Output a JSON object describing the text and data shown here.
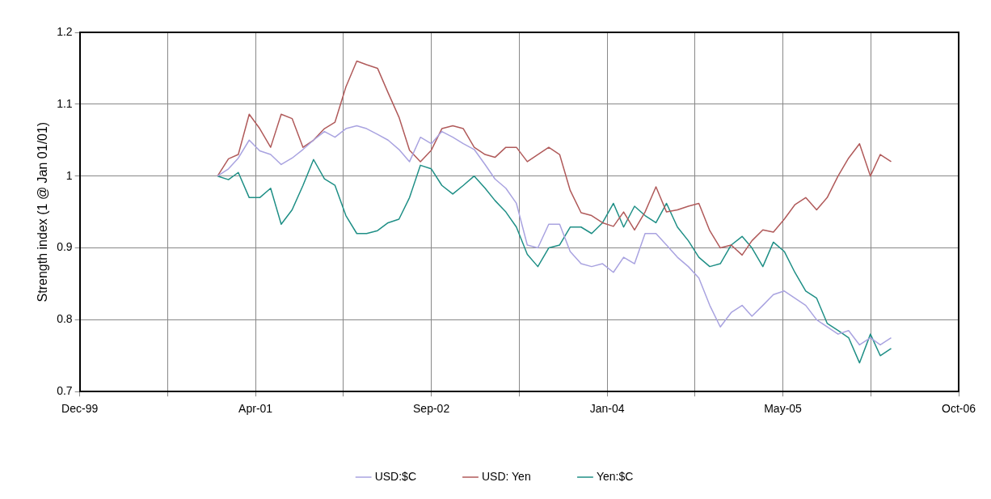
{
  "chart_data": {
    "type": "line",
    "ylabel": "Strength index (1 @ Jan 01/01)",
    "x": [
      "2001-01",
      "2001-02",
      "2001-03",
      "2001-04",
      "2001-05",
      "2001-06",
      "2001-07",
      "2001-08",
      "2001-09",
      "2001-10",
      "2001-11",
      "2001-12",
      "2002-01",
      "2002-02",
      "2002-03",
      "2002-04",
      "2002-05",
      "2002-06",
      "2002-07",
      "2002-08",
      "2002-09",
      "2002-10",
      "2002-11",
      "2002-12",
      "2003-01",
      "2003-02",
      "2003-03",
      "2003-04",
      "2003-05",
      "2003-06",
      "2003-07",
      "2003-08",
      "2003-09",
      "2003-10",
      "2003-11",
      "2003-12",
      "2004-01",
      "2004-02",
      "2004-03",
      "2004-04",
      "2004-05",
      "2004-06",
      "2004-07",
      "2004-08",
      "2004-09",
      "2004-10",
      "2004-11",
      "2004-12",
      "2005-01",
      "2005-02",
      "2005-03",
      "2005-04",
      "2005-05",
      "2005-06",
      "2005-07",
      "2005-08",
      "2005-09",
      "2005-10",
      "2005-11",
      "2005-12",
      "2006-01",
      "2006-02",
      "2006-03",
      "2006-04"
    ],
    "series": [
      {
        "name": "USD:$C",
        "color": "#a9a3e0",
        "values": [
          1.0,
          1.01,
          1.025,
          1.05,
          1.035,
          1.03,
          1.016,
          1.025,
          1.037,
          1.05,
          1.062,
          1.054,
          1.066,
          1.07,
          1.066,
          1.058,
          1.05,
          1.037,
          1.02,
          1.054,
          1.045,
          1.062,
          1.054,
          1.045,
          1.037,
          1.016,
          0.996,
          0.983,
          0.962,
          0.904,
          0.9,
          0.933,
          0.933,
          0.895,
          0.878,
          0.874,
          0.878,
          0.866,
          0.887,
          0.878,
          0.92,
          0.92,
          0.904,
          0.887,
          0.874,
          0.858,
          0.82,
          0.79,
          0.81,
          0.82,
          0.805,
          0.82,
          0.835,
          0.84,
          0.83,
          0.82,
          0.8,
          0.79,
          0.78,
          0.785,
          0.765,
          0.775,
          0.765,
          0.775
        ]
      },
      {
        "name": "USD: Yen",
        "color": "#b05a5a",
        "values": [
          1.0,
          1.024,
          1.03,
          1.086,
          1.066,
          1.04,
          1.086,
          1.08,
          1.04,
          1.05,
          1.066,
          1.075,
          1.124,
          1.16,
          1.155,
          1.15,
          1.116,
          1.082,
          1.036,
          1.02,
          1.036,
          1.066,
          1.07,
          1.066,
          1.04,
          1.03,
          1.026,
          1.04,
          1.04,
          1.02,
          1.03,
          1.04,
          1.03,
          0.98,
          0.949,
          0.945,
          0.935,
          0.93,
          0.95,
          0.925,
          0.95,
          0.985,
          0.95,
          0.953,
          0.958,
          0.962,
          0.924,
          0.9,
          0.904,
          0.89,
          0.91,
          0.925,
          0.922,
          0.94,
          0.96,
          0.97,
          0.953,
          0.97,
          1.0,
          1.025,
          1.045,
          1.0,
          1.03,
          1.02
        ]
      },
      {
        "name": "Yen:$C",
        "color": "#1f8f86",
        "values": [
          1.0,
          0.995,
          1.005,
          0.97,
          0.97,
          0.983,
          0.933,
          0.953,
          0.987,
          1.023,
          0.996,
          0.987,
          0.945,
          0.92,
          0.92,
          0.924,
          0.935,
          0.94,
          0.97,
          1.015,
          1.01,
          0.987,
          0.975,
          0.987,
          1.0,
          0.983,
          0.966,
          0.95,
          0.929,
          0.891,
          0.874,
          0.9,
          0.904,
          0.929,
          0.929,
          0.92,
          0.935,
          0.962,
          0.929,
          0.958,
          0.945,
          0.935,
          0.962,
          0.929,
          0.91,
          0.887,
          0.874,
          0.878,
          0.904,
          0.916,
          0.9,
          0.874,
          0.908,
          0.895,
          0.866,
          0.84,
          0.83,
          0.795,
          0.785,
          0.775,
          0.74,
          0.78,
          0.75,
          0.76
        ]
      }
    ],
    "xlim": [
      "1999-12-06",
      "2006-10-10"
    ],
    "xticks": [
      {
        "value": "1999-12-06",
        "label": "Dec-99"
      },
      {
        "value": "2000-08-12",
        "label": null
      },
      {
        "value": "2001-04-19",
        "label": "Apr-01"
      },
      {
        "value": "2001-12-25",
        "label": null
      },
      {
        "value": "2002-09-01",
        "label": "Sep-02"
      },
      {
        "value": "2003-05-09",
        "label": null
      },
      {
        "value": "2004-01-14",
        "label": "Jan-04"
      },
      {
        "value": "2004-09-20",
        "label": null
      },
      {
        "value": "2005-05-28",
        "label": "May-05"
      },
      {
        "value": "2006-02-02",
        "label": null
      },
      {
        "value": "2006-10-10",
        "label": "Oct-06"
      }
    ],
    "ylim": [
      0.7,
      1.2
    ],
    "yticks": [
      0.7,
      0.8,
      0.9,
      1,
      1.1,
      1.2
    ],
    "grid": true,
    "legend": "bottom",
    "marker": "none",
    "line_style": "solid"
  }
}
